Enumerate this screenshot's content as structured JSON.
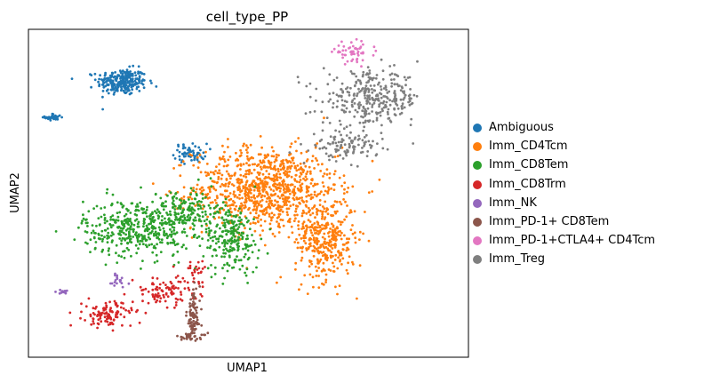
{
  "chart_data": {
    "type": "scatter",
    "title": "cell_type_PP",
    "xlabel": "UMAP1",
    "ylabel": "UMAP2",
    "xticks": [],
    "yticks": [],
    "grid": false,
    "legend_position": "right",
    "series": [
      {
        "name": "Ambiguous",
        "color": "#1f77b4",
        "clusters": [
          {
            "center": [
              -4.6,
              7.2
            ],
            "spread": [
              0.45,
              0.35
            ],
            "n": 260
          },
          {
            "center": [
              -7.1,
              5.3
            ],
            "spread": [
              0.15,
              0.1
            ],
            "n": 40
          },
          {
            "center": [
              -2.1,
              3.4
            ],
            "spread": [
              0.3,
              0.25
            ],
            "n": 60
          }
        ]
      },
      {
        "name": "Imm_CD4Tcm",
        "color": "#ff7f0e",
        "clusters": [
          {
            "center": [
              0.6,
              1.5
            ],
            "spread": [
              1.3,
              1.1
            ],
            "n": 900
          },
          {
            "center": [
              2.8,
              -1.2
            ],
            "spread": [
              0.55,
              1.1
            ],
            "n": 350
          }
        ]
      },
      {
        "name": "Imm_CD8Tem",
        "color": "#2ca02c",
        "clusters": [
          {
            "center": [
              -4.0,
              -0.6
            ],
            "spread": [
              1.0,
              0.75
            ],
            "n": 420
          },
          {
            "center": [
              -0.6,
              -1.2
            ],
            "spread": [
              0.5,
              0.9
            ],
            "n": 220
          },
          {
            "center": [
              -2.3,
              0.3
            ],
            "spread": [
              0.7,
              0.6
            ],
            "n": 150
          }
        ]
      },
      {
        "name": "Imm_CD8Trm",
        "color": "#d62728",
        "clusters": [
          {
            "center": [
              -5.1,
              -5.2
            ],
            "spread": [
              0.45,
              0.35
            ],
            "n": 110
          },
          {
            "center": [
              -3.0,
              -4.0
            ],
            "spread": [
              0.6,
              0.35
            ],
            "n": 95
          },
          {
            "center": [
              -1.9,
              -2.9
            ],
            "spread": [
              0.3,
              0.3
            ],
            "n": 25
          }
        ]
      },
      {
        "name": "Imm_NK",
        "color": "#9467bd",
        "clusters": [
          {
            "center": [
              -6.7,
              -4.0
            ],
            "spread": [
              0.15,
              0.05
            ],
            "n": 14
          },
          {
            "center": [
              -4.8,
              -3.4
            ],
            "spread": [
              0.2,
              0.3
            ],
            "n": 18
          }
        ]
      },
      {
        "name": "Imm_PD-1+ CD8Tem",
        "color": "#8c564b",
        "clusters": [
          {
            "center": [
              -2.0,
              -5.3
            ],
            "spread": [
              0.12,
              0.7
            ],
            "n": 90
          },
          {
            "center": [
              -2.1,
              -6.4
            ],
            "spread": [
              0.3,
              0.1
            ],
            "n": 30
          }
        ]
      },
      {
        "name": "Imm_PD-1+CTLA4+ CD4Tcm",
        "color": "#e377c2",
        "clusters": [
          {
            "center": [
              3.8,
              8.8
            ],
            "spread": [
              0.35,
              0.25
            ],
            "n": 55
          }
        ]
      },
      {
        "name": "Imm_Treg",
        "color": "#7f7f7f",
        "clusters": [
          {
            "center": [
              4.5,
              6.3
            ],
            "spread": [
              0.9,
              0.7
            ],
            "n": 320
          },
          {
            "center": [
              3.5,
              3.8
            ],
            "spread": [
              0.6,
              0.4
            ],
            "n": 110
          }
        ]
      }
    ],
    "xlim": [
      -8.0,
      8.0
    ],
    "ylim": [
      -7.5,
      10.0
    ]
  }
}
